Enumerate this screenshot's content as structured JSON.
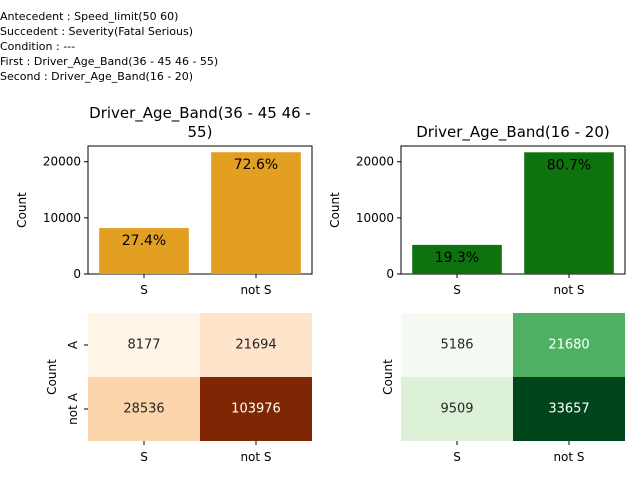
{
  "header": {
    "lines": [
      "Antecedent : Speed_limit(50 60)",
      "Succedent : Severity(Fatal Serious)",
      "Condition : ---",
      "First : Driver_Age_Band(36 - 45 46 - 55)",
      "Second : Driver_Age_Band(16 - 20)"
    ]
  },
  "colors": {
    "first_bar": "#e39f21",
    "second_bar": "#0e720e",
    "first_heat": [
      "#fff4e8",
      "#fee4cb",
      "#fdd5ac",
      "#7f2704"
    ],
    "second_heat": [
      "#f5fbf3",
      "#4fb064",
      "#dcf1d7",
      "#00441b"
    ]
  },
  "chart_data": [
    {
      "type": "bar",
      "title_lines": [
        "Driver_Age_Band(36 - 45 46 -",
        "55)"
      ],
      "categories": [
        "S",
        "not S"
      ],
      "values": [
        8177,
        21694
      ],
      "labels": [
        "27.4%",
        "72.6%"
      ],
      "ylabel": "Count",
      "ylim": [
        0,
        22800
      ],
      "yticks": [
        0,
        10000,
        20000
      ]
    },
    {
      "type": "bar",
      "title_lines": [
        "Driver_Age_Band(16 - 20)"
      ],
      "categories": [
        "S",
        "not S"
      ],
      "values": [
        5186,
        21680
      ],
      "labels": [
        "19.3%",
        "80.7%"
      ],
      "ylabel": "Count",
      "ylim": [
        0,
        22800
      ],
      "yticks": [
        0,
        10000,
        20000
      ]
    },
    {
      "type": "heatmap",
      "rows": [
        "A",
        "not A"
      ],
      "cols": [
        "S",
        "not S"
      ],
      "values": [
        [
          8177,
          21694
        ],
        [
          28536,
          103976
        ]
      ],
      "ylabel": "Count"
    },
    {
      "type": "heatmap",
      "rows": [
        "A",
        "not A"
      ],
      "cols": [
        "S",
        "not S"
      ],
      "values": [
        [
          5186,
          21680
        ],
        [
          9509,
          33657
        ]
      ],
      "ylabel": "Count"
    }
  ]
}
